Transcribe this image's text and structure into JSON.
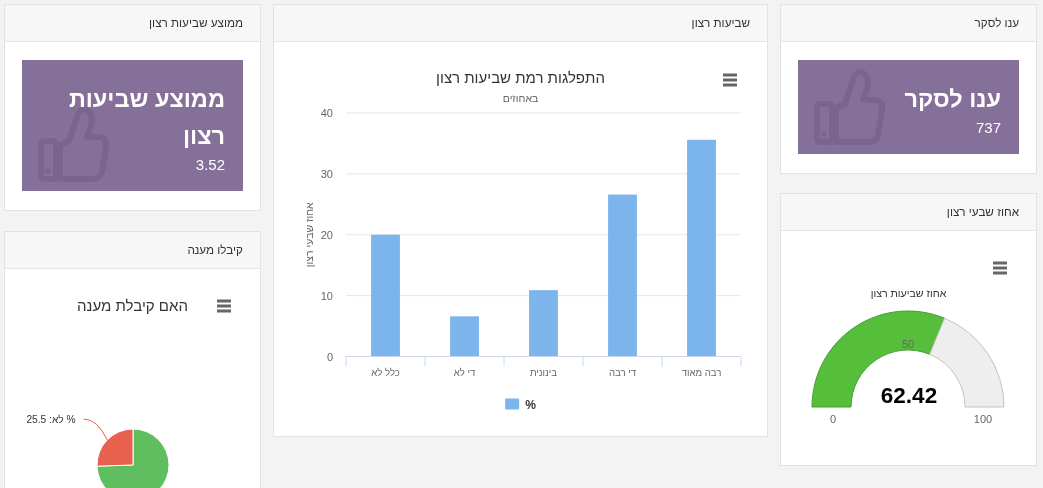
{
  "chart_data": [
    {
      "type": "other",
      "title": "ענו לסקר",
      "values": [
        737
      ],
      "data_labels": true,
      "color": "#85709a",
      "annotations": [
        "ענו לסקר"
      ]
    },
    {
      "type": "bar",
      "title": "התפלגות רמת שביעות רצון",
      "subtitle": "באחוזים",
      "ylabel": "אחוז שבעי רצון",
      "categories": [
        "כלל לא",
        "די לא",
        "בינונית",
        "די רבה",
        "רבה מאוד"
      ],
      "series": [
        {
          "name": "%",
          "color": "#7cb5ec",
          "values": [
            20,
            6.6,
            10.9,
            26.6,
            35.6
          ]
        }
      ],
      "ylim": [
        0,
        40
      ],
      "yticks": [
        0,
        10,
        20,
        30,
        40
      ],
      "grid": "y",
      "legend": "bottom",
      "annotations": [
        "שביעות רצון"
      ]
    },
    {
      "type": "other",
      "title": "ממוצע שביעות רצון",
      "values": [
        3.52
      ],
      "data_labels": true,
      "color": "#85709a",
      "annotations": [
        "ממוצע שביעות רצון"
      ]
    },
    {
      "type": "donut",
      "title": "אחוז שביעות רצון",
      "categories": [
        null,
        null
      ],
      "values": [
        62.42,
        37.58
      ],
      "colors": [
        "#55bf3b",
        "#eeeeee"
      ],
      "value_labels": [
        "62.42",
        null
      ],
      "annotations": [
        "אחוז שבעי רצון",
        "0",
        "50",
        "100"
      ]
    },
    {
      "type": "pie",
      "title": "האם קיבלת מענה",
      "categories": [
        null,
        null
      ],
      "values": [
        74.5,
        25.5
      ],
      "colors": [
        "#5fbe5f",
        "#e8604e"
      ],
      "value_labels": [
        null,
        "לא: 25.5 %"
      ],
      "annotations": [
        "קיבלו מענה"
      ]
    }
  ]
}
